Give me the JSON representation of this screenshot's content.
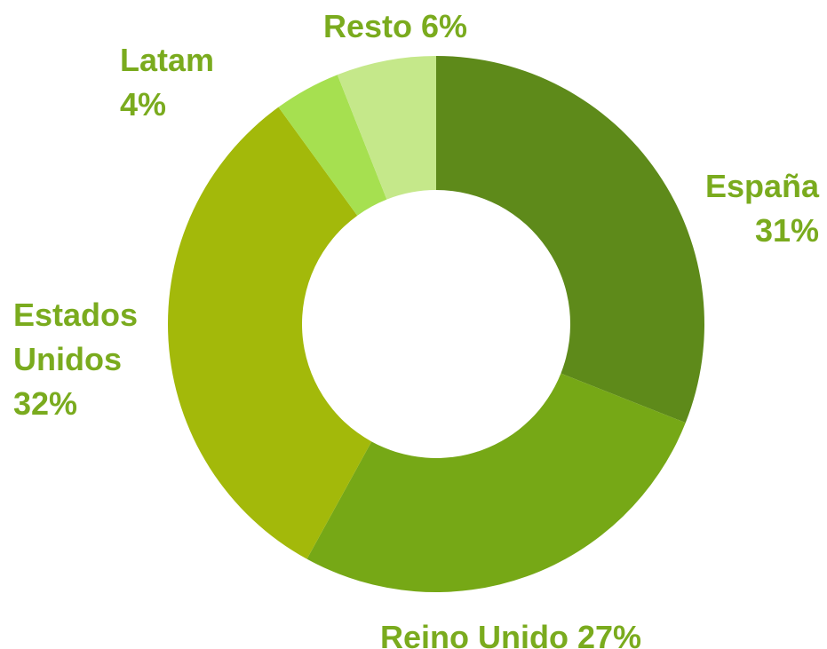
{
  "chart_data": {
    "type": "donut",
    "categories": [
      "España",
      "Reino Unido",
      "Estados Unidos",
      "Latam",
      "Resto"
    ],
    "values": [
      31,
      27,
      32,
      4,
      6
    ],
    "value_labels": [
      "31%",
      "27%",
      "32%",
      "4%",
      "6%"
    ],
    "colors": [
      "#5e8a1a",
      "#76a816",
      "#a3b90a",
      "#a6e050",
      "#c5e88a"
    ]
  }
}
